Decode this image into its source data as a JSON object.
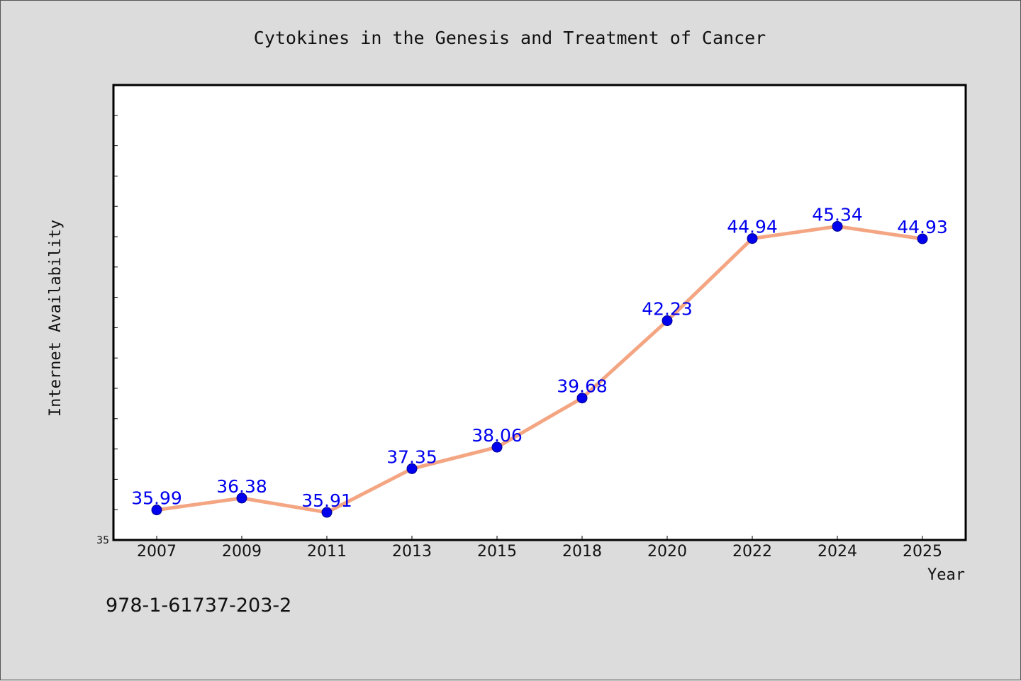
{
  "chart_data": {
    "type": "line",
    "title": "Cytokines in the Genesis and Treatment of Cancer",
    "xlabel": "Year",
    "ylabel": "Internet Availability",
    "categories": [
      "2007",
      "2009",
      "2011",
      "2013",
      "2015",
      "2018",
      "2020",
      "2022",
      "2024",
      "2025"
    ],
    "series": [
      {
        "values": [
          35.99,
          36.38,
          35.91,
          37.35,
          38.06,
          39.68,
          42.23,
          44.94,
          45.34,
          44.93
        ],
        "line_color": "#f4a582",
        "marker_color": "#0000ee"
      }
    ],
    "data_labels": [
      "35.99",
      "36.38",
      "35.91",
      "37.35",
      "38.06",
      "39.68",
      "42.23",
      "44.94",
      "45.34",
      "44.93"
    ],
    "yticks_labeled": [
      "35"
    ],
    "ylim": [
      35,
      50
    ],
    "grid": false,
    "legend": "none"
  },
  "footer": {
    "isbn": "978-1-61737-203-2"
  }
}
